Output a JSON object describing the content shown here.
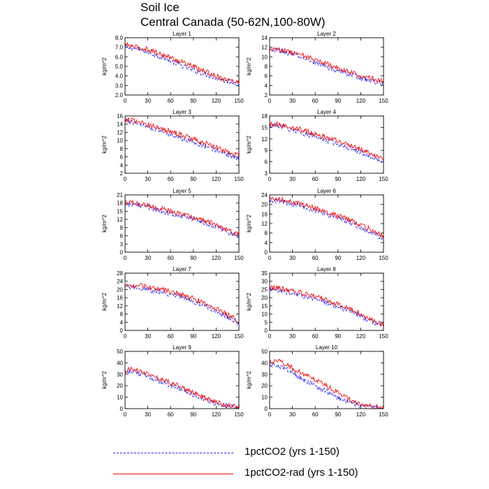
{
  "title": "Soil Ice",
  "subtitle": "Central Canada (50-62N,100-80W)",
  "colors": {
    "series_a": "#2222ee",
    "series_b": "#ee1111"
  },
  "legend": [
    {
      "label": "1pctCO2 (yrs 1-150)",
      "style": "dashed",
      "color": "#2222ee"
    },
    {
      "label": "1pctCO2-rad (yrs 1-150)",
      "style": "solid",
      "color": "#ee1111"
    }
  ],
  "chart_data": [
    {
      "type": "line",
      "title": "Layer 1",
      "ylabel": "kg/m^2",
      "xlim": [
        0,
        150
      ],
      "ylim": [
        2.0,
        8.0
      ],
      "xticks": [
        "0",
        "30",
        "60",
        "90",
        "120",
        "150"
      ],
      "yticks": [
        "2.0",
        "3.0",
        "4.0",
        "5.0",
        "6.0",
        "7.0",
        "8.0"
      ],
      "series": [
        {
          "name": "1pctCO2 (yrs 1-150)",
          "x": [
            0,
            10,
            20,
            30,
            40,
            50,
            60,
            70,
            80,
            90,
            100,
            110,
            120,
            130,
            140,
            150
          ],
          "values": [
            7.0,
            6.9,
            6.7,
            6.5,
            6.2,
            5.9,
            5.6,
            5.2,
            4.9,
            4.6,
            4.3,
            4.1,
            3.8,
            3.5,
            3.4,
            3.1
          ]
        },
        {
          "name": "1pctCO2-rad (yrs 1-150)",
          "x": [
            0,
            10,
            20,
            30,
            40,
            50,
            60,
            70,
            80,
            90,
            100,
            110,
            120,
            130,
            140,
            150
          ],
          "values": [
            7.3,
            7.1,
            6.9,
            6.8,
            6.5,
            6.2,
            5.9,
            5.6,
            5.3,
            5.0,
            4.6,
            4.3,
            4.0,
            3.7,
            3.5,
            3.3
          ]
        }
      ]
    },
    {
      "type": "line",
      "title": "Layer 2",
      "ylabel": "kg/m^2",
      "xlim": [
        0,
        150
      ],
      "ylim": [
        2,
        14
      ],
      "xticks": [
        "0",
        "30",
        "60",
        "90",
        "120",
        "150"
      ],
      "yticks": [
        "2",
        "4",
        "6",
        "8",
        "10",
        "12",
        "14"
      ],
      "series": [
        {
          "name": "1pctCO2 (yrs 1-150)",
          "x": [
            0,
            10,
            20,
            30,
            40,
            50,
            60,
            70,
            80,
            90,
            100,
            110,
            120,
            130,
            140,
            150
          ],
          "values": [
            11.3,
            11.3,
            11.0,
            10.5,
            10.0,
            9.4,
            8.8,
            8.2,
            7.6,
            7.1,
            6.6,
            6.1,
            5.6,
            5.1,
            4.7,
            4.4
          ]
        },
        {
          "name": "1pctCO2-rad (yrs 1-150)",
          "x": [
            0,
            10,
            20,
            30,
            40,
            50,
            60,
            70,
            80,
            90,
            100,
            110,
            120,
            130,
            140,
            150
          ],
          "values": [
            11.6,
            11.6,
            11.3,
            10.9,
            10.5,
            10.0,
            9.4,
            8.8,
            8.2,
            7.7,
            7.1,
            6.6,
            6.1,
            5.6,
            5.2,
            5.0
          ]
        }
      ]
    },
    {
      "type": "line",
      "title": "Layer 3",
      "ylabel": "kg/m^2",
      "xlim": [
        0,
        150
      ],
      "ylim": [
        2,
        16
      ],
      "xticks": [
        "0",
        "30",
        "60",
        "90",
        "120",
        "150"
      ],
      "yticks": [
        "2",
        "4",
        "6",
        "8",
        "10",
        "12",
        "14",
        "16"
      ],
      "series": [
        {
          "name": "1pctCO2 (yrs 1-150)",
          "x": [
            0,
            10,
            20,
            30,
            40,
            50,
            60,
            70,
            80,
            90,
            100,
            110,
            120,
            130,
            140,
            150
          ],
          "values": [
            14.8,
            14.6,
            14.0,
            13.4,
            12.8,
            12.2,
            11.5,
            10.9,
            10.3,
            9.6,
            9.0,
            8.3,
            7.6,
            6.9,
            6.2,
            5.5
          ]
        },
        {
          "name": "1pctCO2-rad (yrs 1-150)",
          "x": [
            0,
            10,
            20,
            30,
            40,
            50,
            60,
            70,
            80,
            90,
            100,
            110,
            120,
            130,
            140,
            150
          ],
          "values": [
            15.0,
            14.9,
            14.4,
            13.9,
            13.4,
            12.8,
            12.2,
            11.6,
            11.0,
            10.3,
            9.7,
            9.0,
            8.3,
            7.6,
            6.9,
            6.3
          ]
        }
      ]
    },
    {
      "type": "line",
      "title": "Layer 4",
      "ylabel": "kg/m^2",
      "xlim": [
        0,
        150
      ],
      "ylim": [
        3,
        18
      ],
      "xticks": [
        "0",
        "30",
        "60",
        "90",
        "120",
        "150"
      ],
      "yticks": [
        "3",
        "6",
        "9",
        "12",
        "15",
        "18"
      ],
      "series": [
        {
          "name": "1pctCO2 (yrs 1-150)",
          "x": [
            0,
            10,
            20,
            30,
            40,
            50,
            60,
            70,
            80,
            90,
            100,
            110,
            120,
            130,
            140,
            150
          ],
          "values": [
            15.4,
            15.4,
            14.9,
            14.3,
            13.7,
            13.1,
            12.5,
            11.9,
            11.3,
            10.7,
            10.0,
            9.3,
            8.5,
            7.6,
            6.7,
            5.8
          ]
        },
        {
          "name": "1pctCO2-rad (yrs 1-150)",
          "x": [
            0,
            10,
            20,
            30,
            40,
            50,
            60,
            70,
            80,
            90,
            100,
            110,
            120,
            130,
            140,
            150
          ],
          "values": [
            15.8,
            15.9,
            15.5,
            15.0,
            14.5,
            13.9,
            13.3,
            12.7,
            12.1,
            11.4,
            10.8,
            10.1,
            9.3,
            8.4,
            7.5,
            6.6
          ]
        }
      ]
    },
    {
      "type": "line",
      "title": "Layer 5",
      "ylabel": "kg/m^2",
      "xlim": [
        0,
        150
      ],
      "ylim": [
        0,
        21
      ],
      "xticks": [
        "0",
        "30",
        "60",
        "90",
        "120",
        "150"
      ],
      "yticks": [
        "0",
        "3",
        "6",
        "9",
        "12",
        "15",
        "18",
        "21"
      ],
      "series": [
        {
          "name": "1pctCO2 (yrs 1-150)",
          "x": [
            0,
            10,
            20,
            30,
            40,
            50,
            60,
            70,
            80,
            90,
            100,
            110,
            120,
            130,
            140,
            150
          ],
          "values": [
            17.8,
            17.6,
            17.0,
            16.4,
            15.7,
            15.0,
            14.3,
            13.6,
            12.9,
            12.1,
            11.3,
            10.4,
            9.3,
            8.1,
            6.8,
            5.5
          ]
        },
        {
          "name": "1pctCO2-rad (yrs 1-150)",
          "x": [
            0,
            10,
            20,
            30,
            40,
            50,
            60,
            70,
            80,
            90,
            100,
            110,
            120,
            130,
            140,
            150
          ],
          "values": [
            18.2,
            18.1,
            17.6,
            17.0,
            16.4,
            15.7,
            15.0,
            14.3,
            13.6,
            12.8,
            12.0,
            11.1,
            10.0,
            8.8,
            7.5,
            6.2
          ]
        }
      ]
    },
    {
      "type": "line",
      "title": "Layer 6",
      "ylabel": "kg/m^2",
      "xlim": [
        0,
        150
      ],
      "ylim": [
        0,
        24
      ],
      "xticks": [
        "0",
        "30",
        "60",
        "90",
        "120",
        "150"
      ],
      "yticks": [
        "0",
        "4",
        "8",
        "12",
        "16",
        "20",
        "24"
      ],
      "series": [
        {
          "name": "1pctCO2 (yrs 1-150)",
          "x": [
            0,
            10,
            20,
            30,
            40,
            50,
            60,
            70,
            80,
            90,
            100,
            110,
            120,
            130,
            140,
            150
          ],
          "values": [
            21.8,
            21.5,
            20.8,
            20.0,
            19.2,
            18.3,
            17.4,
            16.4,
            15.4,
            14.3,
            13.1,
            11.8,
            10.4,
            8.9,
            7.3,
            5.6
          ]
        },
        {
          "name": "1pctCO2-rad (yrs 1-150)",
          "x": [
            0,
            10,
            20,
            30,
            40,
            50,
            60,
            70,
            80,
            90,
            100,
            110,
            120,
            130,
            140,
            150
          ],
          "values": [
            22.4,
            22.3,
            21.6,
            20.9,
            20.1,
            19.3,
            18.4,
            17.4,
            16.4,
            15.3,
            14.1,
            12.8,
            11.4,
            9.9,
            8.3,
            6.6
          ]
        }
      ]
    },
    {
      "type": "line",
      "title": "Layer 7",
      "ylabel": "kg/m^2",
      "xlim": [
        0,
        150
      ],
      "ylim": [
        0,
        28
      ],
      "xticks": [
        "0",
        "30",
        "60",
        "90",
        "120",
        "150"
      ],
      "yticks": [
        "0",
        "4",
        "8",
        "12",
        "16",
        "20",
        "24",
        "28"
      ],
      "series": [
        {
          "name": "1pctCO2 (yrs 1-150)",
          "x": [
            0,
            10,
            20,
            30,
            40,
            50,
            60,
            70,
            80,
            90,
            100,
            110,
            120,
            130,
            140,
            150
          ],
          "values": [
            21.0,
            21.0,
            20.6,
            20.0,
            19.3,
            18.5,
            17.6,
            16.6,
            15.5,
            14.2,
            12.8,
            11.2,
            9.4,
            7.5,
            5.5,
            3.5
          ]
        },
        {
          "name": "1pctCO2-rad (yrs 1-150)",
          "x": [
            0,
            10,
            20,
            30,
            40,
            50,
            60,
            70,
            80,
            90,
            100,
            110,
            120,
            130,
            140,
            150
          ],
          "values": [
            21.8,
            22.0,
            21.7,
            21.2,
            20.6,
            19.8,
            18.9,
            17.9,
            16.8,
            15.5,
            14.1,
            12.5,
            10.7,
            8.7,
            6.6,
            4.5
          ]
        }
      ]
    },
    {
      "type": "line",
      "title": "Layer 8",
      "ylabel": "kg/m^2",
      "xlim": [
        0,
        150
      ],
      "ylim": [
        0,
        35
      ],
      "xticks": [
        "0",
        "30",
        "60",
        "90",
        "120",
        "150"
      ],
      "yticks": [
        "0",
        "5",
        "10",
        "15",
        "20",
        "25",
        "30",
        "35"
      ],
      "series": [
        {
          "name": "1pctCO2 (yrs 1-150)",
          "x": [
            0,
            10,
            20,
            30,
            40,
            50,
            60,
            70,
            80,
            90,
            100,
            110,
            120,
            130,
            140,
            150
          ],
          "values": [
            25.0,
            24.5,
            23.6,
            22.6,
            21.5,
            20.3,
            19.0,
            17.6,
            16.1,
            14.5,
            12.8,
            10.9,
            8.8,
            6.6,
            4.5,
            2.8
          ]
        },
        {
          "name": "1pctCO2-rad (yrs 1-150)",
          "x": [
            0,
            10,
            20,
            30,
            40,
            50,
            60,
            70,
            80,
            90,
            100,
            110,
            120,
            130,
            140,
            150
          ],
          "values": [
            25.8,
            26.0,
            25.2,
            24.2,
            23.1,
            21.9,
            20.6,
            19.2,
            17.7,
            16.0,
            14.2,
            12.2,
            10.0,
            7.7,
            5.4,
            3.5
          ]
        }
      ]
    },
    {
      "type": "line",
      "title": "Layer 9",
      "ylabel": "kg/m^2",
      "xlim": [
        0,
        150
      ],
      "ylim": [
        0,
        50
      ],
      "xticks": [
        "0",
        "30",
        "60",
        "90",
        "120",
        "150"
      ],
      "yticks": [
        "0",
        "10",
        "20",
        "30",
        "40",
        "50"
      ],
      "series": [
        {
          "name": "1pctCO2 (yrs 1-150)",
          "x": [
            0,
            10,
            20,
            30,
            40,
            50,
            60,
            70,
            80,
            90,
            100,
            110,
            120,
            130,
            140,
            150
          ],
          "values": [
            32.0,
            32.5,
            30.5,
            28.0,
            25.5,
            23.0,
            20.5,
            18.0,
            15.0,
            12.0,
            9.0,
            6.5,
            4.5,
            3.0,
            2.0,
            1.5
          ]
        },
        {
          "name": "1pctCO2-rad (yrs 1-150)",
          "x": [
            0,
            10,
            20,
            30,
            40,
            50,
            60,
            70,
            80,
            90,
            100,
            110,
            120,
            130,
            140,
            150
          ],
          "values": [
            33.0,
            34.5,
            32.5,
            30.0,
            27.5,
            25.0,
            22.5,
            20.0,
            17.0,
            14.0,
            11.0,
            8.0,
            5.5,
            3.5,
            2.2,
            1.5
          ]
        }
      ]
    },
    {
      "type": "line",
      "title": "Layer 10",
      "ylabel": "kg/m^2",
      "xlim": [
        0,
        150
      ],
      "ylim": [
        0,
        50
      ],
      "xticks": [
        "0",
        "30",
        "60",
        "90",
        "120",
        "150"
      ],
      "yticks": [
        "0",
        "10",
        "20",
        "30",
        "40",
        "50"
      ],
      "series": [
        {
          "name": "1pctCO2 (yrs 1-150)",
          "x": [
            0,
            10,
            20,
            30,
            40,
            50,
            60,
            70,
            80,
            90,
            100,
            110,
            120,
            130,
            140,
            150
          ],
          "values": [
            38.0,
            38.5,
            35.0,
            31.0,
            27.0,
            23.5,
            20.0,
            16.5,
            13.0,
            9.5,
            6.5,
            4.2,
            2.8,
            1.8,
            1.2,
            0.8
          ]
        },
        {
          "name": "1pctCO2-rad (yrs 1-150)",
          "x": [
            0,
            10,
            20,
            30,
            40,
            50,
            60,
            70,
            80,
            90,
            100,
            110,
            120,
            130,
            140,
            150
          ],
          "values": [
            40.0,
            42.0,
            39.0,
            35.5,
            32.0,
            28.5,
            25.0,
            21.5,
            18.0,
            14.0,
            10.0,
            6.5,
            4.0,
            2.5,
            1.5,
            1.0
          ]
        }
      ]
    }
  ]
}
